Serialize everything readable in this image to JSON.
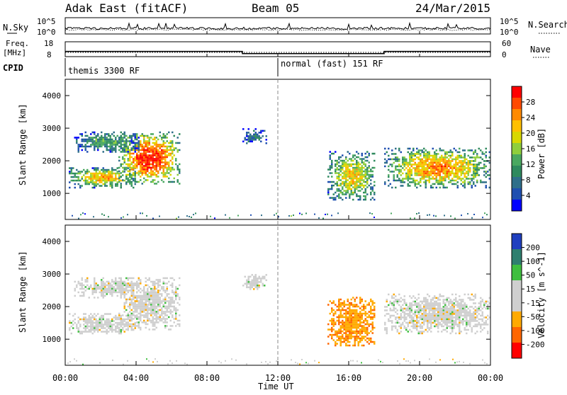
{
  "chart_data": {
    "type": "heatmap",
    "header": {
      "title": "Adak East (fitACF)",
      "beam": "Beam 05",
      "date": "24/Mar/2015"
    },
    "noise_panel": {
      "left_label": "N.Sky",
      "right_label": "N.Search",
      "left_ticks": [
        "10^5",
        "10^0"
      ],
      "right_ticks": [
        "10^5",
        "10^0"
      ]
    },
    "freq_panel": {
      "left_label_top": "Freq.",
      "left_label_bottom": "[MHz]",
      "right_label": "Nave",
      "left_ticks": [
        18,
        8
      ],
      "right_ticks": [
        60,
        0
      ],
      "freq_steps": [
        {
          "start_ut": 0,
          "end_ut": 10,
          "mhz": 11.5
        },
        {
          "start_ut": 10,
          "end_ut": 18,
          "mhz": 10.0
        },
        {
          "start_ut": 18,
          "end_ut": 24,
          "mhz": 11.5
        }
      ]
    },
    "cpid": {
      "label": "CPID",
      "modes": [
        {
          "start_ut": 0,
          "label": "themis 3300 RF"
        },
        {
          "start_ut": 12,
          "label": "normal (fast) 151 RF"
        }
      ]
    },
    "xaxis": {
      "label": "Time UT",
      "ticks": [
        "00:00",
        "04:00",
        "08:00",
        "12:00",
        "16:00",
        "20:00",
        "00:00"
      ],
      "range_hours": [
        0,
        24
      ]
    },
    "yaxis": {
      "label": "Slant Range [km]",
      "ticks": [
        1000,
        2000,
        3000,
        4000
      ],
      "range_km": [
        200,
        4500
      ]
    },
    "power_panel": {
      "colorbar_label": "Power [dB]",
      "colorbar_ticks": [
        "28",
        "24",
        "20",
        "16",
        "12",
        "8",
        "4"
      ],
      "colorbar_colors": [
        "#ff0000",
        "#ff4a00",
        "#ff8a00",
        "#ffc000",
        "#d8d800",
        "#8fce3c",
        "#4aa860",
        "#2f8a5e",
        "#2f6f8a",
        "#1f4fb0",
        "#0000ff"
      ],
      "regions": [
        {
          "t0": 0.2,
          "t1": 4.0,
          "r0": 1200,
          "r1": 1800,
          "level": 0.55
        },
        {
          "t0": 3.0,
          "t1": 6.5,
          "r0": 1300,
          "r1": 2900,
          "level": 0.75
        },
        {
          "t0": 0.5,
          "t1": 4.2,
          "r0": 2300,
          "r1": 2900,
          "level": 0.3
        },
        {
          "t0": 10.0,
          "t1": 11.3,
          "r0": 2550,
          "r1": 3000,
          "level": 0.2
        },
        {
          "t0": 14.8,
          "t1": 17.5,
          "r0": 800,
          "r1": 2300,
          "level": 0.5
        },
        {
          "t0": 18.0,
          "t1": 24.0,
          "r0": 1200,
          "r1": 2400,
          "level": 0.6
        }
      ]
    },
    "velocity_panel": {
      "colorbar_label": "Velocity [m s^-1]",
      "colorbar_ticks": [
        "200",
        "100",
        "50",
        "15",
        "-15",
        "-50",
        "-100",
        "-200"
      ],
      "colorbar_colors": [
        "#1f3fbf",
        "#2f7f6f",
        "#3fbf3f",
        "#cfcfcf",
        "#cfcfcf",
        "#ffaa00",
        "#ff6600",
        "#ff0000"
      ],
      "regions": [
        {
          "t0": 0.2,
          "t1": 4.0,
          "r0": 1200,
          "r1": 1800,
          "color": "ground"
        },
        {
          "t0": 3.0,
          "t1": 6.5,
          "r0": 1300,
          "r1": 2900,
          "color": "ground"
        },
        {
          "t0": 0.5,
          "t1": 4.2,
          "r0": 2300,
          "r1": 2900,
          "color": "ground"
        },
        {
          "t0": 10.0,
          "t1": 11.3,
          "r0": 2550,
          "r1": 3000,
          "color": "ground"
        },
        {
          "t0": 14.8,
          "t1": 17.5,
          "r0": 800,
          "r1": 2300,
          "color": "orange"
        },
        {
          "t0": 18.0,
          "t1": 24.0,
          "r0": 1200,
          "r1": 2400,
          "color": "ground"
        }
      ]
    }
  }
}
